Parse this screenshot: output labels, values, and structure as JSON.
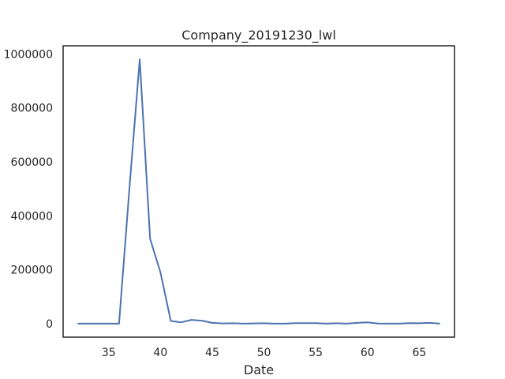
{
  "chart_data": {
    "type": "line",
    "title": "Company_20191230_lwl",
    "xlabel": "Date",
    "ylabel": "",
    "xlim": [
      30.6,
      68.4
    ],
    "ylim": [
      -50000,
      1030000
    ],
    "xticks": [
      35,
      40,
      45,
      50,
      55,
      60,
      65
    ],
    "yticks": [
      0,
      200000,
      400000,
      600000,
      800000,
      1000000
    ],
    "grid": false,
    "line_color": "#4c72b0",
    "series": [
      {
        "x": [
          32,
          33,
          34,
          35,
          36,
          37,
          38,
          39,
          40,
          41,
          42,
          43,
          44,
          45,
          46,
          47,
          48,
          49,
          50,
          51,
          52,
          53,
          54,
          55,
          56,
          57,
          58,
          59,
          60,
          61,
          62,
          63,
          64,
          65,
          66,
          67
        ],
        "y": [
          0,
          0,
          0,
          0,
          0,
          500000,
          980000,
          315000,
          190000,
          10000,
          5000,
          14000,
          11000,
          3000,
          1000,
          1500,
          0,
          1000,
          1500,
          0,
          0,
          2000,
          2000,
          2000,
          0,
          1500,
          0,
          3000,
          5000,
          500,
          0,
          0,
          2000,
          1500,
          3000,
          0
        ]
      }
    ]
  }
}
